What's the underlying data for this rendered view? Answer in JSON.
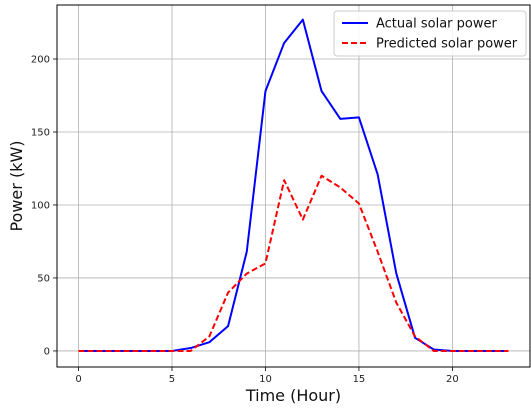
{
  "chart_data": {
    "type": "line",
    "xlabel": "Time (Hour)",
    "ylabel": "Power (kW)",
    "xlim": [
      -1.15,
      24.15
    ],
    "ylim": [
      -11,
      237
    ],
    "xticks": [
      0,
      5,
      10,
      15,
      20
    ],
    "yticks": [
      0,
      50,
      100,
      150,
      200
    ],
    "grid": true,
    "legend_position": "top-right",
    "x": [
      0,
      1,
      2,
      3,
      4,
      5,
      6,
      7,
      8,
      9,
      10,
      11,
      12,
      13,
      14,
      15,
      16,
      17,
      18,
      19,
      20,
      21,
      22,
      23
    ],
    "series": [
      {
        "name": "Actual solar power",
        "color": "#0000ff",
        "style": "solid",
        "values": [
          0,
          0,
          0,
          0,
          0,
          0,
          2,
          6,
          17,
          68,
          178,
          211,
          227,
          178,
          159,
          160,
          121,
          53,
          9,
          1,
          0,
          0,
          0,
          0
        ]
      },
      {
        "name": "Predicted solar power",
        "color": "#ff0000",
        "style": "dashed",
        "values": [
          0,
          0,
          0,
          0,
          0,
          0,
          0,
          10,
          40,
          53,
          60,
          117,
          90,
          120,
          112,
          101,
          68,
          33,
          10,
          0,
          0,
          0,
          0,
          0
        ]
      }
    ]
  }
}
